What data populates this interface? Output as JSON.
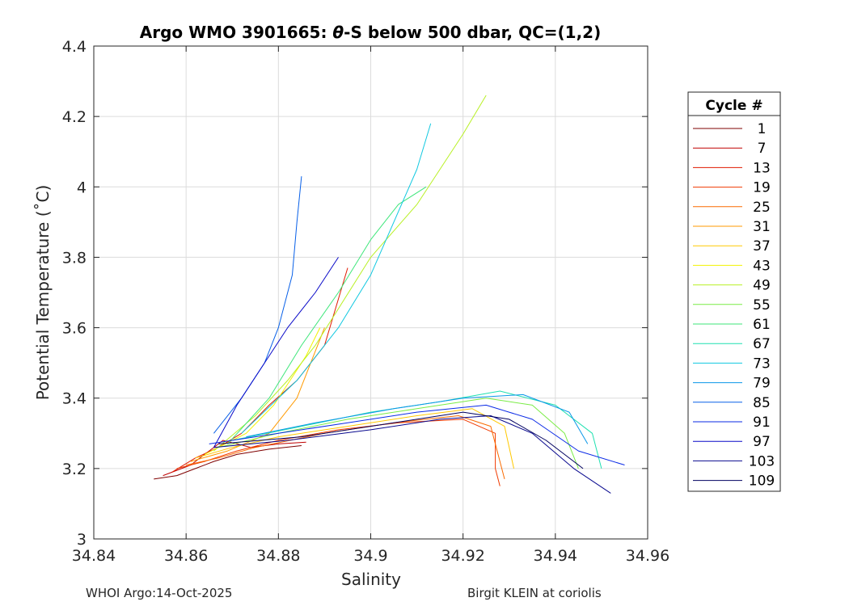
{
  "chart_data": {
    "type": "line",
    "title_prefix": "Argo WMO 3901665: ",
    "title_theta": "θ",
    "title_suffix": "-S below 500 dbar,  QC=(1,2)",
    "xlabel": "Salinity",
    "ylabel": "Potential Temperature (˚C)",
    "xlim": [
      34.84,
      34.96
    ],
    "ylim": [
      3.0,
      4.4
    ],
    "xticks": [
      34.84,
      34.86,
      34.88,
      34.9,
      34.92,
      34.94,
      34.96
    ],
    "xtick_labels": [
      "34.84",
      "34.86",
      "34.88",
      "34.9",
      "34.92",
      "34.94",
      "34.96"
    ],
    "yticks": [
      3.0,
      3.2,
      3.4,
      3.6,
      3.8,
      4.0,
      4.2,
      4.4
    ],
    "ytick_labels": [
      "3",
      "3.2",
      "3.4",
      "3.6",
      "3.8",
      "4",
      "4.2",
      "4.4"
    ],
    "grid": true,
    "legend": {
      "title": "Cycle #",
      "position": "right",
      "entries": [
        {
          "label": "1",
          "color": "#7f0000"
        },
        {
          "label": "7",
          "color": "#c00000"
        },
        {
          "label": "13",
          "color": "#e01a00"
        },
        {
          "label": "19",
          "color": "#f03a00"
        },
        {
          "label": "25",
          "color": "#fa6a00"
        },
        {
          "label": "31",
          "color": "#ff9a00"
        },
        {
          "label": "37",
          "color": "#ffc800"
        },
        {
          "label": "43",
          "color": "#f2f200"
        },
        {
          "label": "49",
          "color": "#b8f024"
        },
        {
          "label": "55",
          "color": "#7aec46"
        },
        {
          "label": "61",
          "color": "#3ee67a"
        },
        {
          "label": "67",
          "color": "#1ee0b0"
        },
        {
          "label": "73",
          "color": "#10c8e0"
        },
        {
          "label": "79",
          "color": "#0a96e8"
        },
        {
          "label": "85",
          "color": "#0860e8"
        },
        {
          "label": "91",
          "color": "#0a2ae6"
        },
        {
          "label": "97",
          "color": "#0808c8"
        },
        {
          "label": "103",
          "color": "#08088e"
        },
        {
          "label": "109",
          "color": "#000060"
        }
      ]
    },
    "series": [
      {
        "name": "1",
        "color": "#7f0000",
        "points": [
          [
            34.853,
            3.17
          ],
          [
            34.858,
            3.18
          ],
          [
            34.862,
            3.2
          ],
          [
            34.866,
            3.22
          ],
          [
            34.871,
            3.24
          ],
          [
            34.878,
            3.255
          ],
          [
            34.885,
            3.265
          ]
        ]
      },
      {
        "name": "7",
        "color": "#c00000",
        "points": [
          [
            34.855,
            3.18
          ],
          [
            34.861,
            3.21
          ],
          [
            34.865,
            3.25
          ],
          [
            34.868,
            3.28
          ],
          [
            34.874,
            3.26
          ],
          [
            34.88,
            3.27
          ],
          [
            34.886,
            3.275
          ]
        ]
      },
      {
        "name": "13",
        "color": "#e01a00",
        "points": [
          [
            34.857,
            3.19
          ],
          [
            34.862,
            3.23
          ],
          [
            34.867,
            3.26
          ],
          [
            34.872,
            3.3
          ],
          [
            34.878,
            3.38
          ],
          [
            34.884,
            3.45
          ],
          [
            34.89,
            3.55
          ],
          [
            34.895,
            3.77
          ]
        ]
      },
      {
        "name": "19",
        "color": "#f03a00",
        "points": [
          [
            34.858,
            3.2
          ],
          [
            34.864,
            3.22
          ],
          [
            34.871,
            3.25
          ],
          [
            34.88,
            3.28
          ],
          [
            34.893,
            3.31
          ],
          [
            34.906,
            3.33
          ],
          [
            34.92,
            3.34
          ],
          [
            34.927,
            3.3
          ],
          [
            34.927,
            3.2
          ],
          [
            34.928,
            3.15
          ]
        ]
      },
      {
        "name": "25",
        "color": "#fa6a00",
        "points": [
          [
            34.86,
            3.21
          ],
          [
            34.867,
            3.23
          ],
          [
            34.875,
            3.26
          ],
          [
            34.89,
            3.3
          ],
          [
            34.905,
            3.33
          ],
          [
            34.919,
            3.35
          ],
          [
            34.926,
            3.32
          ],
          [
            34.928,
            3.22
          ],
          [
            34.929,
            3.17
          ]
        ]
      },
      {
        "name": "31",
        "color": "#ff9a00",
        "points": [
          [
            34.861,
            3.22
          ],
          [
            34.869,
            3.25
          ],
          [
            34.878,
            3.3
          ],
          [
            34.884,
            3.4
          ],
          [
            34.887,
            3.5
          ],
          [
            34.89,
            3.6
          ]
        ]
      },
      {
        "name": "37",
        "color": "#ffc800",
        "points": [
          [
            34.862,
            3.23
          ],
          [
            34.87,
            3.26
          ],
          [
            34.88,
            3.29
          ],
          [
            34.895,
            3.32
          ],
          [
            34.91,
            3.35
          ],
          [
            34.922,
            3.37
          ],
          [
            34.929,
            3.32
          ],
          [
            34.931,
            3.2
          ]
        ]
      },
      {
        "name": "43",
        "color": "#f2f200",
        "points": [
          [
            34.864,
            3.24
          ],
          [
            34.873,
            3.3
          ],
          [
            34.879,
            3.38
          ],
          [
            34.883,
            3.46
          ],
          [
            34.886,
            3.52
          ],
          [
            34.889,
            3.6
          ]
        ]
      },
      {
        "name": "49",
        "color": "#b8f024",
        "points": [
          [
            34.866,
            3.25
          ],
          [
            34.875,
            3.35
          ],
          [
            34.882,
            3.45
          ],
          [
            34.888,
            3.55
          ],
          [
            34.9,
            3.8
          ],
          [
            34.91,
            3.95
          ],
          [
            34.92,
            4.15
          ],
          [
            34.925,
            4.26
          ]
        ]
      },
      {
        "name": "55",
        "color": "#7aec46",
        "points": [
          [
            34.867,
            3.26
          ],
          [
            34.88,
            3.3
          ],
          [
            34.895,
            3.34
          ],
          [
            34.91,
            3.37
          ],
          [
            34.925,
            3.4
          ],
          [
            34.935,
            3.38
          ],
          [
            34.942,
            3.3
          ],
          [
            34.945,
            3.2
          ]
        ]
      },
      {
        "name": "61",
        "color": "#3ee67a",
        "points": [
          [
            34.869,
            3.27
          ],
          [
            34.878,
            3.4
          ],
          [
            34.885,
            3.55
          ],
          [
            34.893,
            3.7
          ],
          [
            34.9,
            3.85
          ],
          [
            34.906,
            3.95
          ],
          [
            34.912,
            4.0
          ]
        ]
      },
      {
        "name": "67",
        "color": "#1ee0b0",
        "points": [
          [
            34.87,
            3.28
          ],
          [
            34.885,
            3.32
          ],
          [
            34.9,
            3.36
          ],
          [
            34.915,
            3.39
          ],
          [
            34.928,
            3.42
          ],
          [
            34.94,
            3.38
          ],
          [
            34.948,
            3.3
          ],
          [
            34.95,
            3.2
          ]
        ]
      },
      {
        "name": "73",
        "color": "#10c8e0",
        "points": [
          [
            34.872,
            3.3
          ],
          [
            34.884,
            3.45
          ],
          [
            34.893,
            3.6
          ],
          [
            34.9,
            3.75
          ],
          [
            34.905,
            3.9
          ],
          [
            34.91,
            4.05
          ],
          [
            34.913,
            4.18
          ]
        ]
      },
      {
        "name": "79",
        "color": "#0a96e8",
        "points": [
          [
            34.873,
            3.29
          ],
          [
            34.888,
            3.33
          ],
          [
            34.905,
            3.37
          ],
          [
            34.92,
            3.4
          ],
          [
            34.933,
            3.41
          ],
          [
            34.943,
            3.36
          ],
          [
            34.947,
            3.27
          ]
        ]
      },
      {
        "name": "85",
        "color": "#0860e8",
        "points": [
          [
            34.866,
            3.3
          ],
          [
            34.872,
            3.4
          ],
          [
            34.877,
            3.5
          ],
          [
            34.88,
            3.6
          ],
          [
            34.883,
            3.75
          ],
          [
            34.884,
            3.9
          ],
          [
            34.885,
            4.03
          ]
        ]
      },
      {
        "name": "91",
        "color": "#0a2ae6",
        "points": [
          [
            34.865,
            3.27
          ],
          [
            34.88,
            3.3
          ],
          [
            34.895,
            3.33
          ],
          [
            34.91,
            3.36
          ],
          [
            34.925,
            3.38
          ],
          [
            34.935,
            3.34
          ],
          [
            34.945,
            3.25
          ],
          [
            34.955,
            3.21
          ]
        ]
      },
      {
        "name": "97",
        "color": "#0808c8",
        "points": [
          [
            34.866,
            3.26
          ],
          [
            34.871,
            3.38
          ],
          [
            34.876,
            3.48
          ],
          [
            34.882,
            3.6
          ],
          [
            34.888,
            3.7
          ],
          [
            34.893,
            3.8
          ]
        ]
      },
      {
        "name": "103",
        "color": "#08088e",
        "points": [
          [
            34.866,
            3.26
          ],
          [
            34.882,
            3.28
          ],
          [
            34.9,
            3.31
          ],
          [
            34.915,
            3.34
          ],
          [
            34.926,
            3.35
          ],
          [
            34.935,
            3.3
          ],
          [
            34.944,
            3.2
          ],
          [
            34.952,
            3.13
          ]
        ]
      },
      {
        "name": "109",
        "color": "#000060",
        "points": [
          [
            34.867,
            3.27
          ],
          [
            34.885,
            3.29
          ],
          [
            34.905,
            3.33
          ],
          [
            34.92,
            3.36
          ],
          [
            34.93,
            3.34
          ],
          [
            34.938,
            3.28
          ],
          [
            34.946,
            3.2
          ]
        ]
      }
    ]
  },
  "footer": {
    "left": "WHOI Argo:14-Oct-2025",
    "right": "Birgit KLEIN at coriolis"
  }
}
